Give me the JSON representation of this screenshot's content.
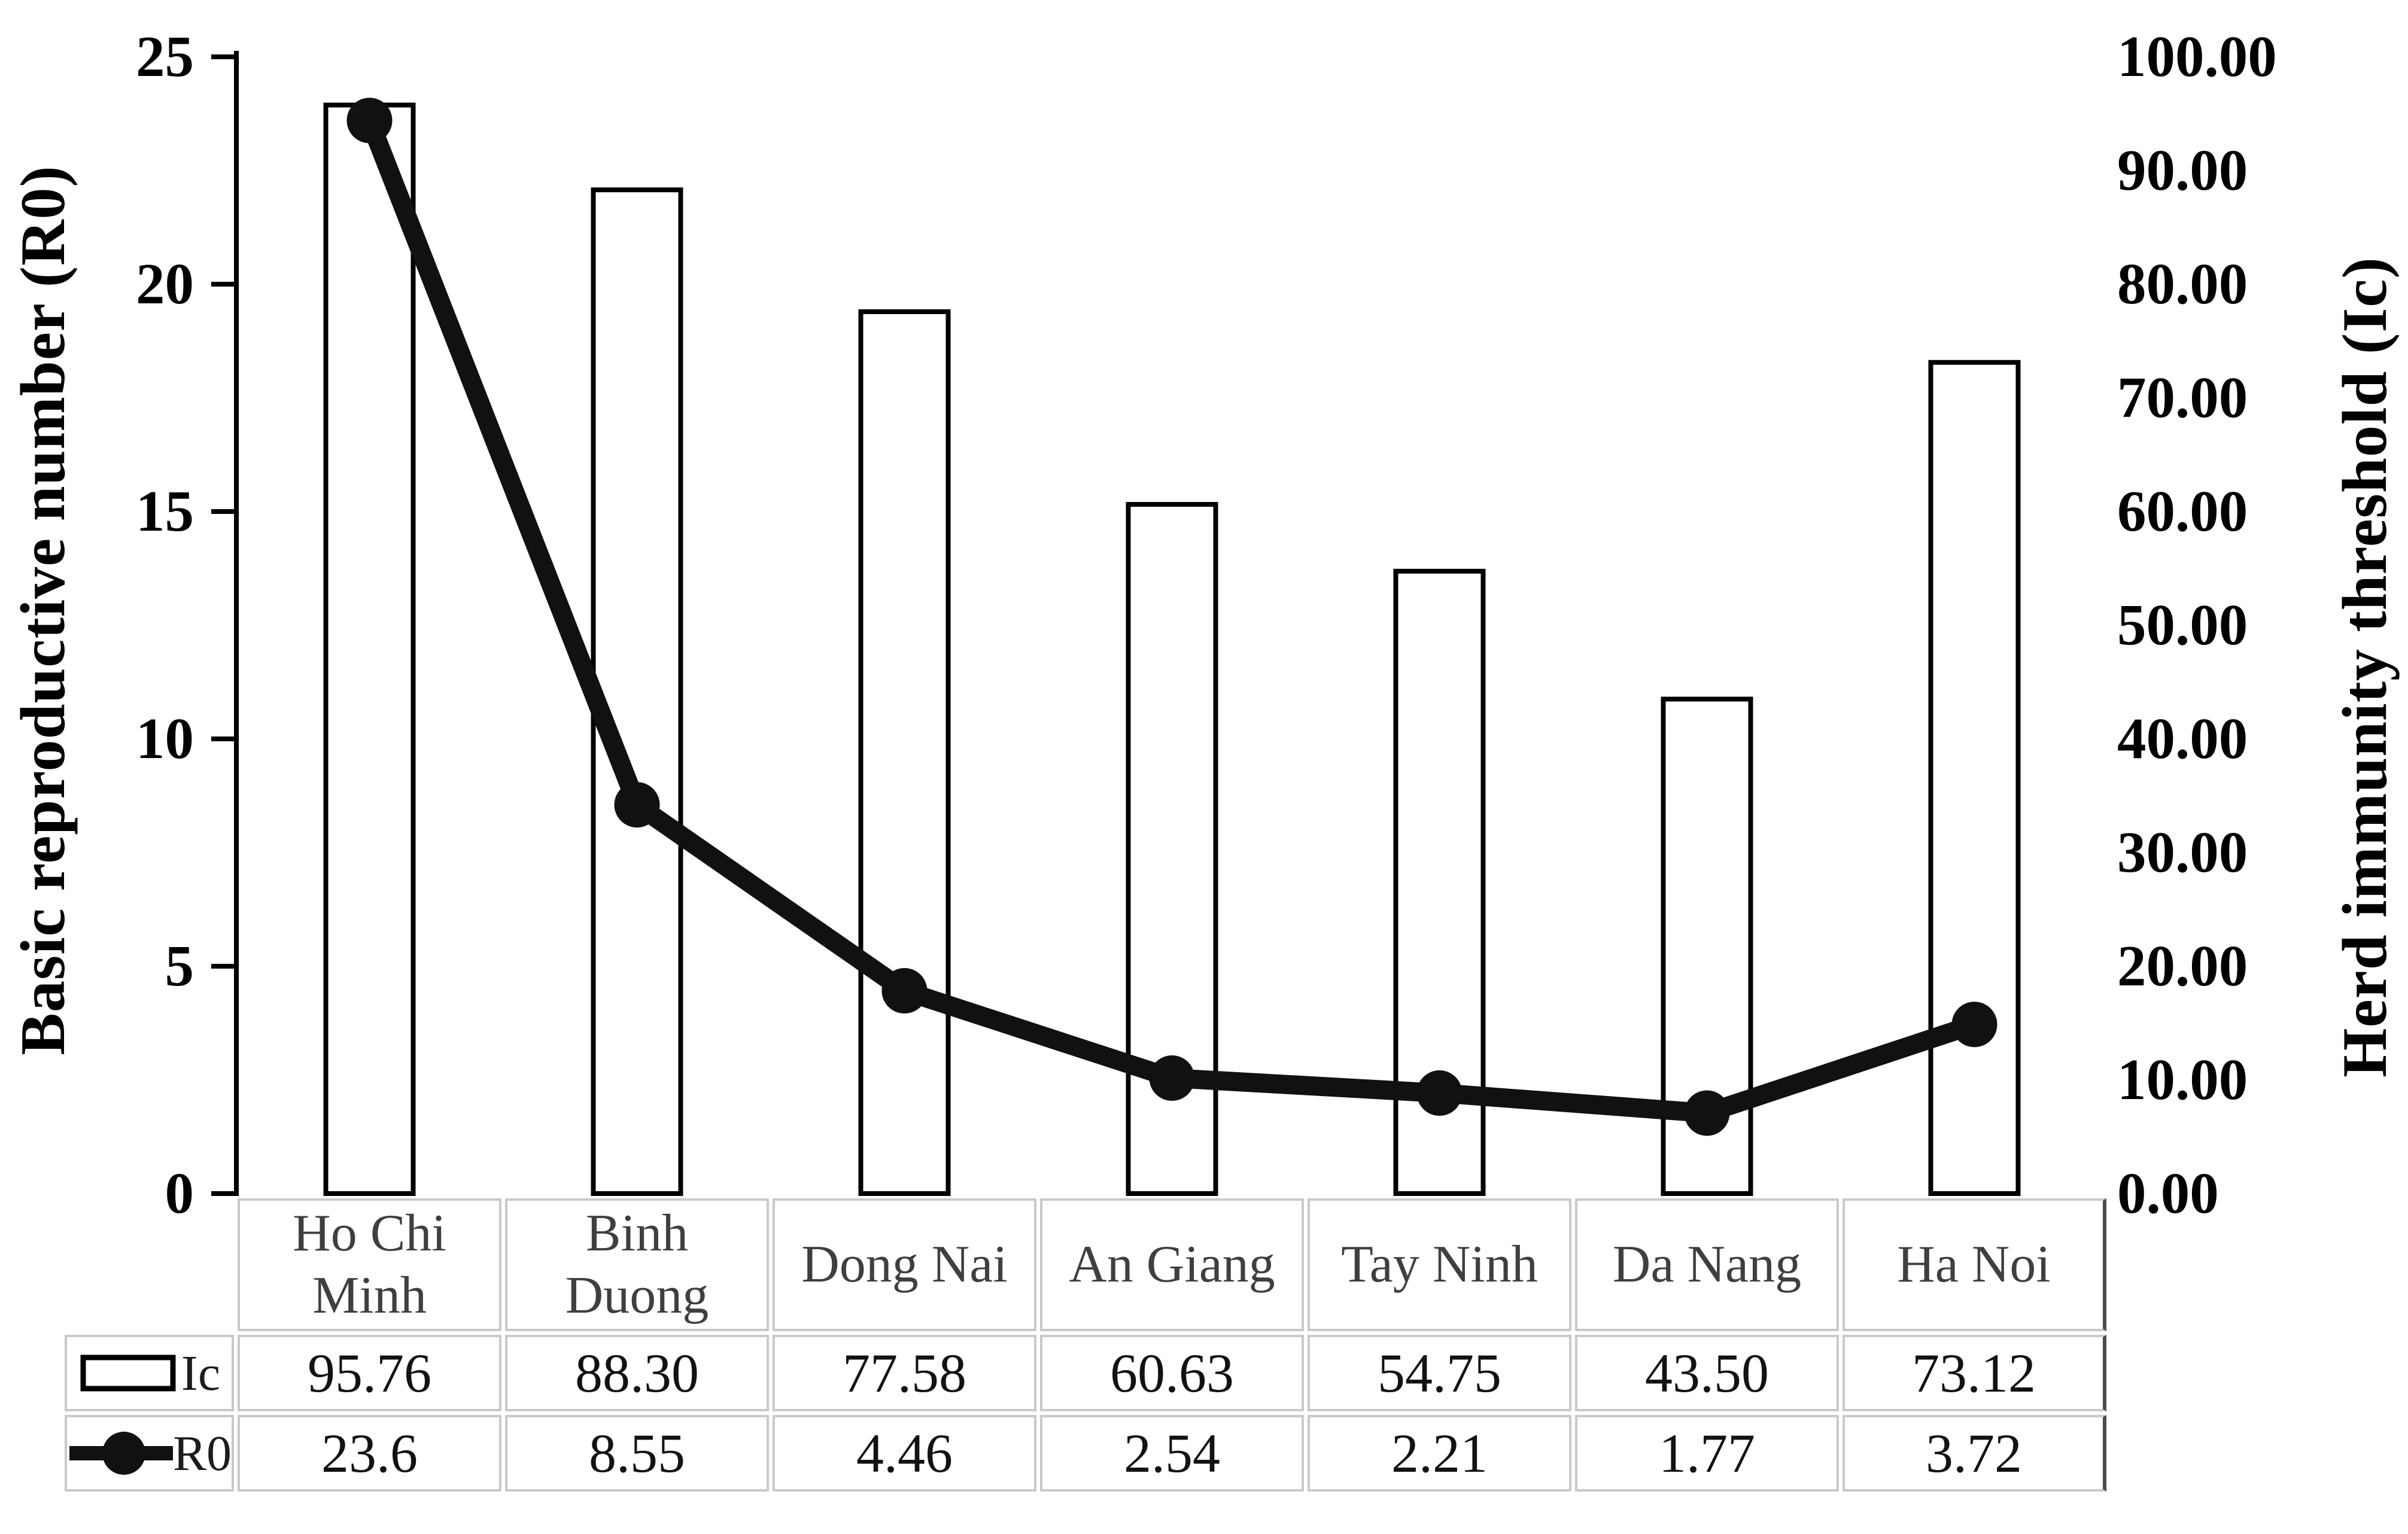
{
  "figure": {
    "description": "Combination chart: white outlined bars (herd immunity threshold Ic, right axis) and thick black line with round markers (basic reproductive number R0, left axis) for seven Vietnamese provinces, with a data table and legend keys below."
  },
  "chart_data": {
    "type": "bar+line-combo",
    "categories": [
      "Ho Chi Minh",
      "Binh Duong",
      "Dong Nai",
      "An Giang",
      "Tay Ninh",
      "Da Nang",
      "Ha Noi"
    ],
    "series": [
      {
        "name": "Ic",
        "type": "bar",
        "axis": "right",
        "values": [
          95.76,
          88.3,
          77.58,
          60.63,
          54.75,
          43.5,
          73.12
        ],
        "display": [
          "95.76",
          "88.30",
          "77.58",
          "60.63",
          "54.75",
          "43.50",
          "73.12"
        ]
      },
      {
        "name": "R0",
        "type": "line",
        "axis": "left",
        "values": [
          23.6,
          8.55,
          4.46,
          2.54,
          2.21,
          1.77,
          3.72
        ],
        "display": [
          "23.6",
          "8.55",
          "4.46",
          "2.54",
          "2.21",
          "1.77",
          "3.72"
        ]
      }
    ],
    "left_axis": {
      "label": "Basic reproductive number (R0)",
      "min": 0,
      "max": 25,
      "ticks": [
        25,
        20,
        15,
        10,
        5,
        0
      ],
      "tick_labels": [
        "25",
        "20",
        "15",
        "10",
        "5",
        "0"
      ]
    },
    "right_axis": {
      "label": "Herd immunity threshold (Ic)",
      "min": 0,
      "max": 100,
      "ticks": [
        100,
        90,
        80,
        70,
        60,
        50,
        40,
        30,
        20,
        10,
        0
      ],
      "tick_labels": [
        "100.00",
        "90.00",
        "80.00",
        "70.00",
        "60.00",
        "50.00",
        "40.00",
        "30.00",
        "20.00",
        "10.00",
        "0.00"
      ]
    },
    "grid": false,
    "legend_position": "table-left-column",
    "colors": {
      "bar_fill": "#ffffff",
      "bar_stroke": "#000000",
      "line": "#111111",
      "marker": "#111111",
      "axis_text": "#000000",
      "category_text": "#3f3f3f",
      "value_text": "#121212",
      "table_border": "#c9c9c9",
      "table_right_border": "#4a4a4a"
    }
  }
}
